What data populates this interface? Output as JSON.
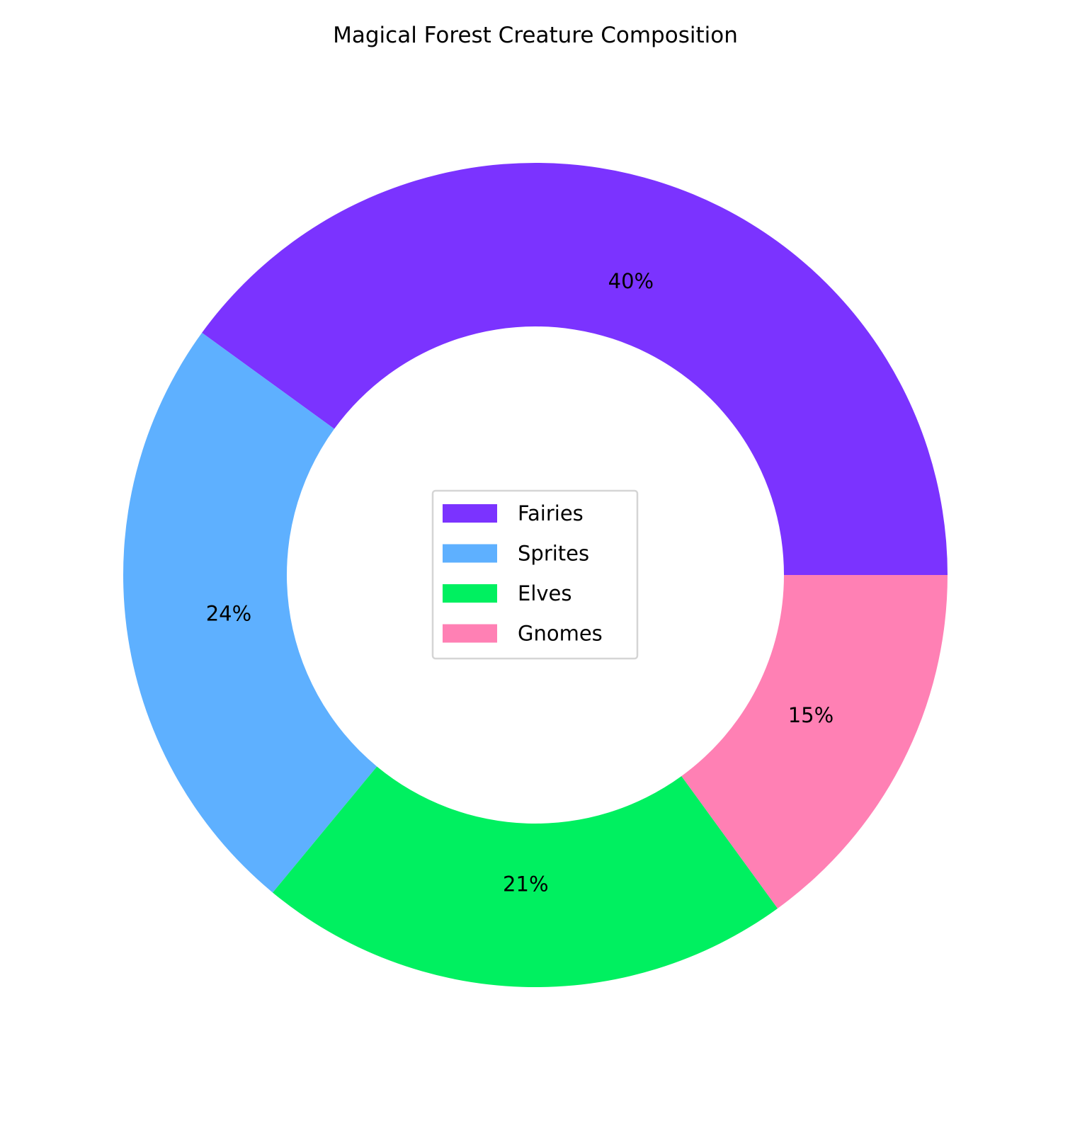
{
  "chart_data": {
    "type": "pie",
    "variant": "donut",
    "title": "Magical Forest Creature Composition",
    "categories": [
      "Fairies",
      "Sprites",
      "Elves",
      "Gnomes"
    ],
    "values": [
      40,
      24,
      21,
      15
    ],
    "labels": [
      "40%",
      "24%",
      "21%",
      "15%"
    ],
    "colors": [
      "#7B33FF",
      "#5EB0FF",
      "#00F060",
      "#FF80B4"
    ],
    "start_angle_deg": 0,
    "direction": "counterclockwise",
    "legend": {
      "placement": "center",
      "entries": [
        "Fairies",
        "Sprites",
        "Elves",
        "Gnomes"
      ]
    }
  }
}
